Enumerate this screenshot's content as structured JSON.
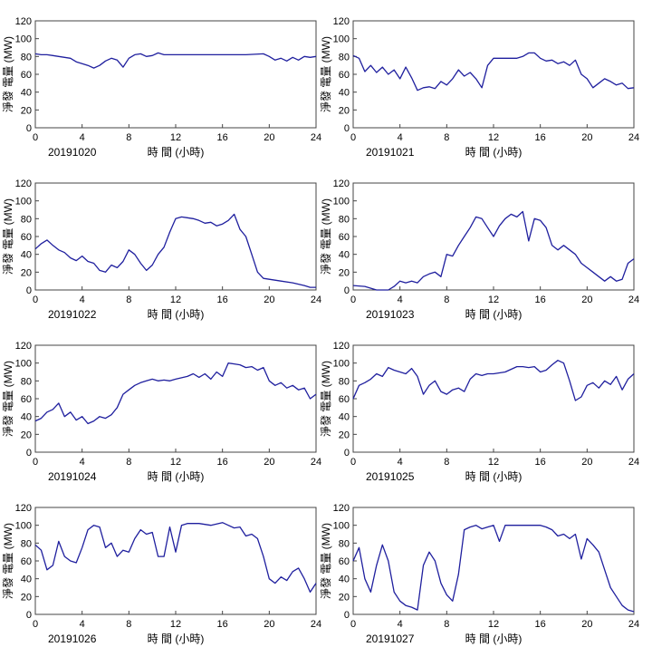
{
  "chart_data": [
    {
      "type": "line",
      "date_label": "20191020",
      "xlabel": "時 間 (小時)",
      "ylabel": "淨發 電量 (MW)",
      "xlim": [
        0,
        24
      ],
      "ylim": [
        0,
        120
      ],
      "xticks": [
        0,
        4,
        8,
        12,
        16,
        20,
        24
      ],
      "yticks": [
        0,
        20,
        40,
        60,
        80,
        100,
        120
      ],
      "line_color": "#1f1f9e",
      "x": [
        0,
        0.5,
        1,
        1.5,
        2,
        2.5,
        3,
        3.5,
        4,
        4.5,
        5,
        5.5,
        6,
        6.5,
        7,
        7.5,
        8,
        8.5,
        9,
        9.5,
        10,
        10.5,
        11,
        11.5,
        12,
        14,
        16,
        18,
        19.5,
        20,
        20.5,
        21,
        21.5,
        22,
        22.5,
        23,
        23.5,
        24
      ],
      "y": [
        83,
        82,
        82,
        81,
        80,
        79,
        78,
        74,
        72,
        70,
        67,
        70,
        75,
        78,
        76,
        68,
        78,
        82,
        83,
        80,
        81,
        84,
        82,
        82,
        82,
        82,
        82,
        82,
        83,
        80,
        76,
        78,
        75,
        79,
        76,
        80,
        79,
        80
      ]
    },
    {
      "type": "line",
      "date_label": "20191021",
      "xlabel": "時 間 (小時)",
      "ylabel": "淨發 電量 (MW)",
      "xlim": [
        0,
        24
      ],
      "ylim": [
        0,
        120
      ],
      "xticks": [
        0,
        4,
        8,
        12,
        16,
        20,
        24
      ],
      "yticks": [
        0,
        20,
        40,
        60,
        80,
        100,
        120
      ],
      "line_color": "#1f1f9e",
      "x": [
        0,
        0.5,
        1,
        1.5,
        2,
        2.5,
        3,
        3.5,
        4,
        4.5,
        5,
        5.5,
        6,
        6.5,
        7,
        7.5,
        8,
        8.5,
        9,
        9.5,
        10,
        10.5,
        11,
        11.5,
        12,
        13,
        14,
        14.5,
        15,
        15.5,
        16,
        16.5,
        17,
        17.5,
        18,
        18.5,
        19,
        19.5,
        20,
        20.5,
        21,
        21.5,
        22,
        22.5,
        23,
        23.5,
        24
      ],
      "y": [
        81,
        78,
        63,
        70,
        62,
        68,
        60,
        65,
        55,
        68,
        56,
        42,
        45,
        46,
        44,
        52,
        48,
        55,
        65,
        58,
        62,
        55,
        45,
        70,
        78,
        78,
        78,
        80,
        84,
        84,
        78,
        75,
        76,
        72,
        74,
        70,
        76,
        60,
        55,
        45,
        50,
        55,
        52,
        48,
        50,
        44,
        45
      ]
    },
    {
      "type": "line",
      "date_label": "20191022",
      "xlabel": "時 間 (小時)",
      "ylabel": "淨發 電量 (MW)",
      "xlim": [
        0,
        24
      ],
      "ylim": [
        0,
        120
      ],
      "xticks": [
        0,
        4,
        8,
        12,
        16,
        20,
        24
      ],
      "yticks": [
        0,
        20,
        40,
        60,
        80,
        100,
        120
      ],
      "line_color": "#1f1f9e",
      "x": [
        0,
        0.5,
        1,
        1.5,
        2,
        2.5,
        3,
        3.5,
        4,
        4.5,
        5,
        5.5,
        6,
        6.5,
        7,
        7.5,
        8,
        8.5,
        9,
        9.5,
        10,
        10.5,
        11,
        11.5,
        12,
        12.5,
        13,
        13.5,
        14,
        14.5,
        15,
        15.5,
        16,
        16.5,
        17,
        17.5,
        18,
        18.5,
        19,
        19.5,
        20,
        21,
        22,
        23,
        23.5,
        24
      ],
      "y": [
        46,
        52,
        56,
        50,
        45,
        42,
        36,
        33,
        38,
        32,
        30,
        22,
        20,
        28,
        25,
        32,
        45,
        40,
        30,
        22,
        28,
        40,
        48,
        65,
        80,
        82,
        81,
        80,
        78,
        75,
        76,
        72,
        74,
        78,
        85,
        68,
        60,
        40,
        20,
        13,
        12,
        10,
        8,
        5,
        3,
        3
      ]
    },
    {
      "type": "line",
      "date_label": "20191023",
      "xlabel": "時 間 (小時)",
      "ylabel": "淨發 電量 (MW)",
      "xlim": [
        0,
        24
      ],
      "ylim": [
        0,
        120
      ],
      "xticks": [
        0,
        4,
        8,
        12,
        16,
        20,
        24
      ],
      "yticks": [
        0,
        20,
        40,
        60,
        80,
        100,
        120
      ],
      "line_color": "#1f1f9e",
      "x": [
        0,
        1,
        2,
        3,
        3.5,
        4,
        4.5,
        5,
        5.5,
        6,
        6.5,
        7,
        7.5,
        8,
        8.5,
        9,
        9.5,
        10,
        10.5,
        11,
        11.5,
        12,
        12.5,
        13,
        13.5,
        14,
        14.5,
        15,
        15.5,
        16,
        16.5,
        17,
        17.5,
        18,
        18.5,
        19,
        19.5,
        20,
        20.5,
        21,
        21.5,
        22,
        22.5,
        23,
        23.5,
        24
      ],
      "y": [
        5,
        4,
        0,
        0,
        4,
        10,
        8,
        10,
        8,
        15,
        18,
        20,
        15,
        40,
        38,
        50,
        60,
        70,
        82,
        80,
        70,
        60,
        72,
        80,
        85,
        82,
        88,
        55,
        80,
        78,
        70,
        50,
        45,
        50,
        45,
        40,
        30,
        25,
        20,
        15,
        10,
        15,
        10,
        12,
        30,
        35
      ]
    },
    {
      "type": "line",
      "date_label": "20191024",
      "xlabel": "時 間 (小時)",
      "ylabel": "淨發 電量 (MW)",
      "xlim": [
        0,
        24
      ],
      "ylim": [
        0,
        120
      ],
      "xticks": [
        0,
        4,
        8,
        12,
        16,
        20,
        24
      ],
      "yticks": [
        0,
        20,
        40,
        60,
        80,
        100,
        120
      ],
      "line_color": "#1f1f9e",
      "x": [
        0,
        0.5,
        1,
        1.5,
        2,
        2.5,
        3,
        3.5,
        4,
        4.5,
        5,
        5.5,
        6,
        6.5,
        7,
        7.5,
        8,
        8.5,
        9,
        9.5,
        10,
        10.5,
        11,
        11.5,
        12,
        13,
        13.5,
        14,
        14.5,
        15,
        15.5,
        16,
        16.5,
        17,
        17.5,
        18,
        18.5,
        19,
        19.5,
        20,
        20.5,
        21,
        21.5,
        22,
        22.5,
        23,
        23.5,
        24
      ],
      "y": [
        35,
        38,
        45,
        48,
        55,
        40,
        45,
        36,
        40,
        32,
        35,
        40,
        38,
        42,
        50,
        65,
        70,
        75,
        78,
        80,
        82,
        80,
        81,
        80,
        82,
        85,
        88,
        84,
        88,
        82,
        90,
        85,
        100,
        99,
        98,
        95,
        96,
        92,
        95,
        80,
        75,
        78,
        72,
        75,
        70,
        72,
        60,
        65
      ]
    },
    {
      "type": "line",
      "date_label": "20191025",
      "xlabel": "時 間 (小時)",
      "ylabel": "淨發 電量 (MW)",
      "xlim": [
        0,
        24
      ],
      "ylim": [
        0,
        120
      ],
      "xticks": [
        0,
        4,
        8,
        12,
        16,
        20,
        24
      ],
      "yticks": [
        0,
        20,
        40,
        60,
        80,
        100,
        120
      ],
      "line_color": "#1f1f9e",
      "x": [
        0,
        0.5,
        1,
        1.5,
        2,
        2.5,
        3,
        3.5,
        4,
        4.5,
        5,
        5.5,
        6,
        6.5,
        7,
        7.5,
        8,
        8.5,
        9,
        9.5,
        10,
        10.5,
        11,
        11.5,
        12,
        13,
        14,
        14.5,
        15,
        15.5,
        16,
        16.5,
        17,
        17.5,
        18,
        18.5,
        19,
        19.5,
        20,
        20.5,
        21,
        21.5,
        22,
        22.5,
        23,
        23.5,
        24
      ],
      "y": [
        60,
        75,
        78,
        82,
        88,
        85,
        95,
        92,
        90,
        88,
        94,
        85,
        65,
        75,
        80,
        68,
        65,
        70,
        72,
        68,
        82,
        88,
        86,
        88,
        88,
        90,
        96,
        96,
        95,
        96,
        90,
        92,
        98,
        103,
        100,
        80,
        58,
        62,
        75,
        78,
        72,
        80,
        76,
        85,
        70,
        82,
        88
      ]
    },
    {
      "type": "line",
      "date_label": "20191026",
      "xlabel": "時 間 (小時)",
      "ylabel": "淨發 電量 (MW)",
      "xlim": [
        0,
        24
      ],
      "ylim": [
        0,
        120
      ],
      "xticks": [
        0,
        4,
        8,
        12,
        16,
        20,
        24
      ],
      "yticks": [
        0,
        20,
        40,
        60,
        80,
        100,
        120
      ],
      "line_color": "#1f1f9e",
      "x": [
        0,
        0.5,
        1,
        1.5,
        2,
        2.5,
        3,
        3.5,
        4,
        4.5,
        5,
        5.5,
        6,
        6.5,
        7,
        7.5,
        8,
        8.5,
        9,
        9.5,
        10,
        10.5,
        11,
        11.5,
        12,
        12.5,
        13,
        14,
        15,
        16,
        16.5,
        17,
        17.5,
        18,
        18.5,
        19,
        19.5,
        20,
        20.5,
        21,
        21.5,
        22,
        22.5,
        23,
        23.5,
        24
      ],
      "y": [
        78,
        72,
        50,
        55,
        82,
        65,
        60,
        58,
        75,
        95,
        100,
        98,
        75,
        80,
        65,
        72,
        70,
        85,
        95,
        90,
        92,
        65,
        65,
        98,
        70,
        100,
        102,
        102,
        100,
        103,
        100,
        97,
        98,
        88,
        90,
        85,
        65,
        40,
        35,
        42,
        38,
        48,
        52,
        40,
        25,
        35
      ]
    },
    {
      "type": "line",
      "date_label": "20191027",
      "xlabel": "時 間 (小時)",
      "ylabel": "淨發 電量 (MW)",
      "xlim": [
        0,
        24
      ],
      "ylim": [
        0,
        120
      ],
      "xticks": [
        0,
        4,
        8,
        12,
        16,
        20,
        24
      ],
      "yticks": [
        0,
        20,
        40,
        60,
        80,
        100,
        120
      ],
      "line_color": "#1f1f9e",
      "x": [
        0,
        0.5,
        1,
        1.5,
        2,
        2.5,
        3,
        3.5,
        4,
        4.5,
        5,
        5.5,
        6,
        6.5,
        7,
        7.5,
        8,
        8.5,
        9,
        9.5,
        10,
        10.5,
        11,
        11.5,
        12,
        12.5,
        13,
        14,
        15,
        16,
        16.5,
        17,
        17.5,
        18,
        18.5,
        19,
        19.5,
        20,
        20.5,
        21,
        21.5,
        22,
        22.5,
        23,
        23.5,
        24
      ],
      "y": [
        60,
        75,
        40,
        25,
        55,
        78,
        60,
        25,
        15,
        10,
        8,
        5,
        55,
        70,
        60,
        35,
        22,
        15,
        45,
        95,
        98,
        100,
        96,
        98,
        100,
        82,
        100,
        100,
        100,
        100,
        98,
        95,
        88,
        90,
        85,
        90,
        62,
        85,
        78,
        70,
        50,
        30,
        20,
        10,
        5,
        3
      ]
    }
  ]
}
